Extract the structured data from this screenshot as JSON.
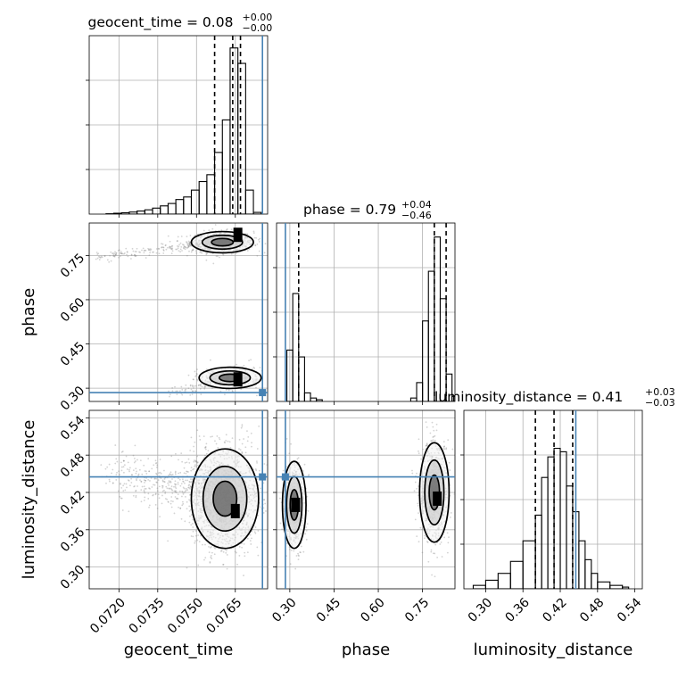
{
  "chart_data": {
    "type": "corner",
    "grid": true,
    "params": [
      {
        "name": "geocent_time",
        "range": [
          0.07085,
          0.07775
        ],
        "ticks": [
          0.072,
          0.0735,
          0.075,
          0.0765
        ],
        "tick_labels": [
          "0.0720",
          "0.0735",
          "0.0750",
          "0.0765"
        ],
        "truth": 0.07755
      },
      {
        "name": "phase",
        "range": [
          0.255,
          0.86
        ],
        "ticks": [
          0.3,
          0.45,
          0.6,
          0.75
        ],
        "tick_labels": [
          "0.30",
          "0.45",
          "0.60",
          "0.75"
        ],
        "truth": 0.285
      },
      {
        "name": "luminosity_distance",
        "range": [
          0.265,
          0.552
        ],
        "ticks": [
          0.3,
          0.36,
          0.42,
          0.48,
          0.54
        ],
        "tick_labels": [
          "0.30",
          "0.36",
          "0.42",
          "0.48",
          "0.54"
        ],
        "truth": 0.445
      }
    ],
    "titles": [
      {
        "param": "geocent_time",
        "prefix": "geocent_time = 0.08",
        "plus": "+0.00",
        "minus": "−0.00"
      },
      {
        "param": "phase",
        "prefix": "phase = 0.79",
        "plus": "+0.04",
        "minus": "−0.46"
      },
      {
        "param": "luminosity_distance",
        "prefix": "luminosity_distance = 0.41",
        "plus": "+0.03",
        "minus": "−0.03"
      }
    ],
    "quantiles": [
      [
        0.0757,
        0.0764,
        0.0767
      ],
      [
        0.33,
        0.79,
        0.83
      ],
      [
        0.38,
        0.41,
        0.44
      ]
    ],
    "histograms": [
      {
        "param": "geocent_time",
        "edges": [
          0.0715,
          0.0718,
          0.0721,
          0.0724,
          0.0727,
          0.073,
          0.0733,
          0.0736,
          0.0739,
          0.0742,
          0.0745,
          0.0748,
          0.0751,
          0.0754,
          0.0757,
          0.076,
          0.0763,
          0.0766,
          0.0769,
          0.0772,
          0.0775
        ],
        "counts": [
          0.002,
          0.005,
          0.008,
          0.012,
          0.018,
          0.025,
          0.035,
          0.048,
          0.062,
          0.085,
          0.1,
          0.14,
          0.19,
          0.23,
          0.36,
          0.55,
          0.97,
          0.88,
          0.14,
          0.01
        ]
      },
      {
        "param": "phase",
        "edges": [
          0.27,
          0.29,
          0.31,
          0.33,
          0.35,
          0.37,
          0.39,
          0.41,
          0.71,
          0.73,
          0.75,
          0.77,
          0.79,
          0.81,
          0.83,
          0.85,
          0.87
        ],
        "counts": [
          0.0,
          0.3,
          0.63,
          0.26,
          0.05,
          0.02,
          0.01,
          0.0,
          0.02,
          0.11,
          0.47,
          0.76,
          0.96,
          0.6,
          0.16,
          0.03
        ]
      },
      {
        "param": "luminosity_distance",
        "edges": [
          0.28,
          0.3,
          0.32,
          0.34,
          0.36,
          0.38,
          0.39,
          0.4,
          0.41,
          0.42,
          0.43,
          0.44,
          0.45,
          0.46,
          0.47,
          0.48,
          0.5,
          0.52,
          0.53
        ],
        "counts": [
          0.02,
          0.05,
          0.09,
          0.16,
          0.28,
          0.43,
          0.65,
          0.77,
          0.82,
          0.8,
          0.6,
          0.45,
          0.28,
          0.17,
          0.09,
          0.04,
          0.02,
          0.01
        ]
      }
    ],
    "density_panels": [
      {
        "x": "geocent_time",
        "y": "phase",
        "clusters": [
          {
            "cx": 0.076,
            "cy": 0.795,
            "sx": 0.0006,
            "sy": 0.018,
            "n": 750,
            "tail_to": [
              0.0712,
              0.745
            ]
          },
          {
            "cx": 0.0763,
            "cy": 0.335,
            "sx": 0.0006,
            "sy": 0.018,
            "n": 320,
            "tail_to": [
              0.074,
              0.28
            ]
          }
        ],
        "peaks": [
          [
            0.0766,
            0.82
          ],
          [
            0.0766,
            0.33
          ]
        ]
      },
      {
        "x": "geocent_time",
        "y": "luminosity_distance",
        "clusters": [
          {
            "cx": 0.0761,
            "cy": 0.41,
            "sx": 0.00065,
            "sy": 0.04,
            "n": 1500,
            "tail_to": [
              0.0718,
              0.45
            ]
          }
        ],
        "peaks": [
          [
            0.0765,
            0.39
          ]
        ]
      },
      {
        "x": "phase",
        "y": "luminosity_distance",
        "clusters": [
          {
            "cx": 0.315,
            "cy": 0.4,
            "sx": 0.02,
            "sy": 0.035,
            "n": 450
          },
          {
            "cx": 0.79,
            "cy": 0.42,
            "sx": 0.025,
            "sy": 0.04,
            "n": 700
          }
        ],
        "peaks": [
          [
            0.32,
            0.4
          ],
          [
            0.8,
            0.41
          ]
        ]
      }
    ],
    "colors": {
      "truth": "#4682b4",
      "hist": "#000000",
      "quantile": "#000000",
      "scatter": "#808080",
      "grid": "#b0b0b0"
    }
  }
}
